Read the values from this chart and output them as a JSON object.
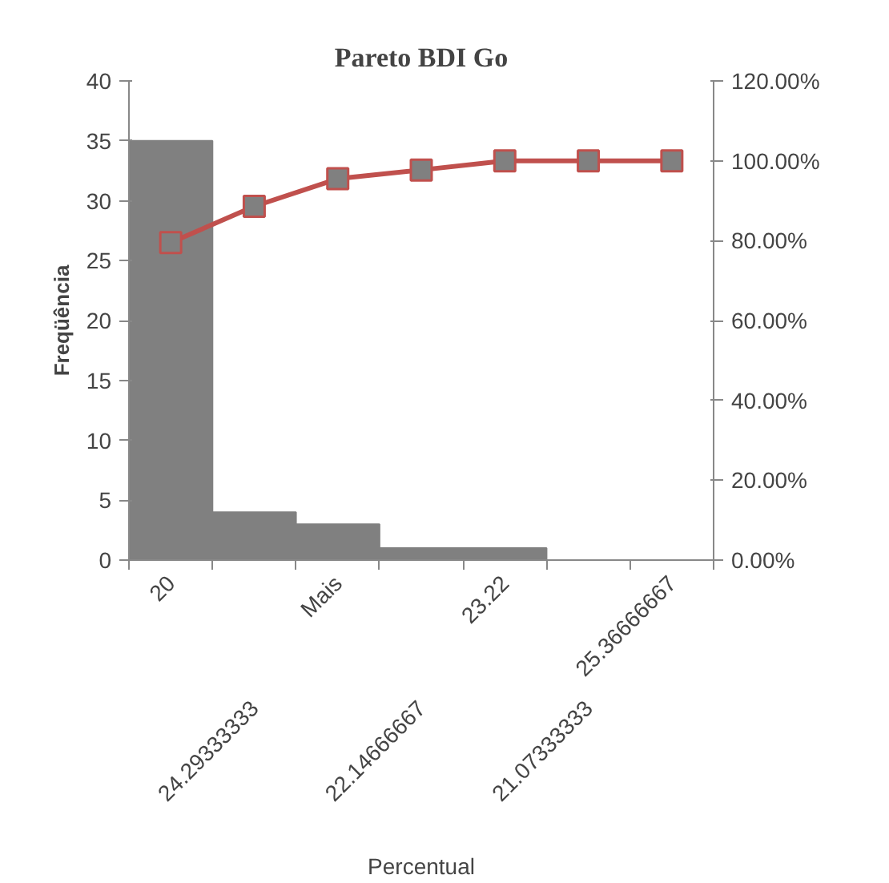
{
  "chart_data": {
    "type": "bar",
    "title": "Pareto BDI Go",
    "xlabel": "Percentual",
    "ylabel": "Freqüência",
    "categories": [
      "20",
      "24.29333333",
      "Mais",
      "22.14666667",
      "23.22",
      "21.07333333",
      "25.36666667"
    ],
    "series": [
      {
        "color": "#808080",
        "values": [
          35,
          4,
          3,
          1,
          1,
          0,
          0
        ]
      },
      {
        "type": "line",
        "axis": "y2",
        "color": "#c0504d",
        "marker": "square",
        "values": [
          79.5,
          88.6,
          95.5,
          97.7,
          100,
          100,
          100
        ]
      }
    ],
    "ylim": [
      0,
      40
    ],
    "yticks": [
      0,
      5,
      10,
      15,
      20,
      25,
      30,
      35,
      40
    ],
    "y2lim": [
      0,
      120
    ],
    "y2ticks": [
      {
        "value": 0,
        "label": "0.00%"
      },
      {
        "value": 20,
        "label": "20.00%"
      },
      {
        "value": 40,
        "label": "40.00%"
      },
      {
        "value": 60,
        "label": "60.00%"
      },
      {
        "value": 80,
        "label": "80.00%"
      },
      {
        "value": 100,
        "label": "100.00%"
      },
      {
        "value": 120,
        "label": "120.00%"
      }
    ],
    "grid": false
  }
}
